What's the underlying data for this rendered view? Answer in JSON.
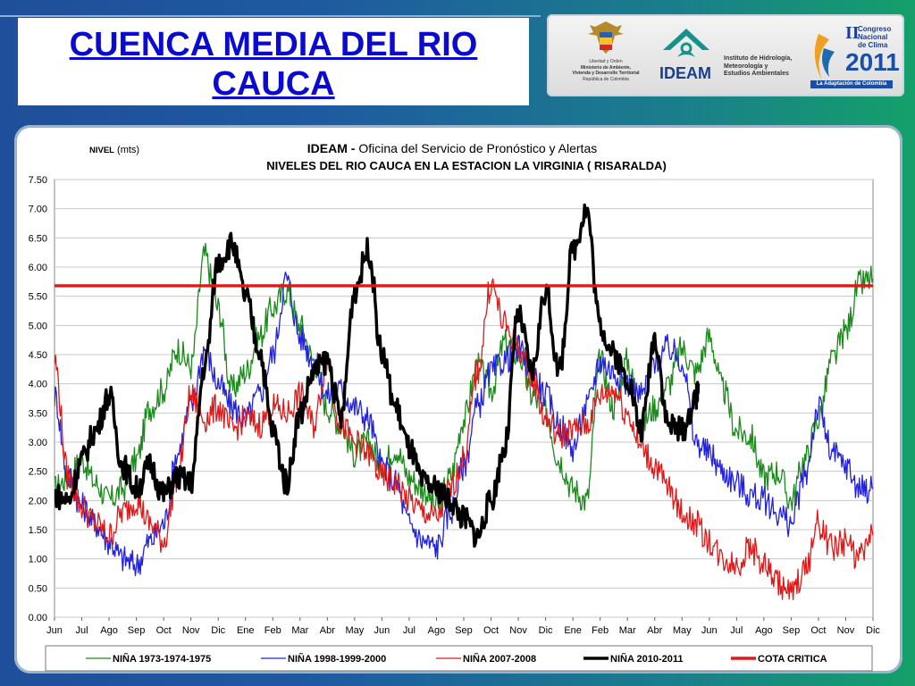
{
  "slide": {
    "title_line1": "CUENCA  MEDIA DEL RIO",
    "title_line2": "CAUCA"
  },
  "logos": {
    "ministerio": {
      "icon": "colombia-coat-of-arms",
      "lines": [
        "Libertad y Orden",
        "Ministerio de Ambiente,",
        "Vivienda y Desarrollo Territorial",
        "República de Colombia"
      ]
    },
    "ideam": {
      "icon": "ideam-logo",
      "name": "IDEAM",
      "lines": [
        "Instituto de Hidrología,",
        "Meteorología y",
        "Estudios Ambientales"
      ]
    },
    "congreso": {
      "icon": "congreso-clima-logo",
      "roman": "II",
      "word1": "Congreso",
      "word2": "Nacional",
      "word3": "de Clima",
      "year": "2011",
      "tagline": "La Adaptación de Colombia"
    }
  },
  "chart_data": {
    "type": "line",
    "title_bold": "IDEAM -",
    "title_rest": " Oficina del Servicio de Pronóstico y Alertas",
    "subtitle": "NIVELES DEL RIO CAUCA EN LA ESTACION LA VIRGINIA ( RISARALDA)",
    "ylabel_bold": "NIVEL",
    "ylabel_rest": " (mts)",
    "ylim": [
      0,
      7.5
    ],
    "yticks": [
      "0.00",
      "0.50",
      "1.00",
      "1.50",
      "2.00",
      "2.50",
      "3.00",
      "3.50",
      "4.00",
      "4.50",
      "5.00",
      "5.50",
      "6.00",
      "6.50",
      "7.00",
      "7.50"
    ],
    "x_months": [
      "Jun",
      "Jul",
      "Ago",
      "Sep",
      "Oct",
      "Nov",
      "Dic",
      "Ene",
      "Feb",
      "Mar",
      "Abr",
      "May",
      "Jun",
      "Jul",
      "Ago",
      "Sep",
      "Oct",
      "Nov",
      "Dic",
      "Ene",
      "Feb",
      "Mar",
      "Abr",
      "May",
      "Jun",
      "Jul",
      "Ago",
      "Sep",
      "Oct",
      "Nov",
      "Dic"
    ],
    "x_note": "x value = months since first Jun tick (0..30)",
    "cota_critica": 5.68,
    "series": [
      {
        "name": "NIÑA 1973-1974-1975",
        "color": "#1a8a1a",
        "width": 1.3,
        "x": [
          0,
          0.5,
          1,
          1.5,
          2,
          2.5,
          3,
          3.5,
          4,
          4.5,
          5,
          5.5,
          6,
          6.5,
          7,
          7.5,
          8,
          8.5,
          9,
          9.5,
          10,
          10.5,
          11,
          11.5,
          12,
          12.5,
          13,
          13.5,
          14,
          14.5,
          15,
          15.5,
          16,
          16.5,
          17,
          17.5,
          18,
          18.5,
          19,
          19.5,
          20,
          20.5,
          21,
          21.5,
          22,
          22.5,
          23,
          23.5,
          24,
          24.5,
          25,
          25.5,
          26,
          26.5,
          27,
          27.5,
          28,
          28.5,
          29,
          29.5,
          30
        ],
        "y": [
          2.2,
          2.4,
          2.7,
          2.3,
          2.0,
          2.2,
          2.7,
          3.6,
          3.9,
          4.6,
          4.3,
          6.2,
          5.3,
          3.9,
          4.2,
          4.8,
          5.3,
          5.6,
          5.0,
          4.4,
          3.6,
          3.3,
          2.8,
          3.0,
          2.6,
          2.9,
          2.4,
          2.2,
          1.9,
          2.4,
          3.4,
          4.3,
          3.9,
          4.7,
          4.5,
          3.8,
          3.5,
          2.7,
          2.2,
          2.0,
          4.4,
          3.6,
          4.4,
          3.3,
          3.6,
          4.0,
          4.6,
          4.2,
          4.8,
          3.9,
          3.2,
          3.1,
          2.4,
          2.5,
          2.0,
          2.7,
          3.4,
          4.4,
          4.9,
          5.7,
          5.8
        ]
      },
      {
        "name": "NIÑA 1998-1999-2000",
        "color": "#2222dd",
        "width": 1.3,
        "x": [
          0,
          0.5,
          1,
          1.5,
          2,
          2.5,
          3,
          3.5,
          4,
          4.5,
          5,
          5.5,
          6,
          6.5,
          7,
          7.5,
          8,
          8.5,
          9,
          9.5,
          10,
          10.5,
          11,
          11.5,
          12,
          12.5,
          13,
          13.5,
          14,
          14.5,
          15,
          15.5,
          16,
          16.5,
          17,
          17.5,
          18,
          18.5,
          19,
          19.5,
          20,
          20.5,
          21,
          21.5,
          22,
          22.5,
          23,
          23.5,
          24,
          24.5,
          25,
          25.5,
          26,
          26.5,
          27,
          27.5,
          28,
          28.5,
          29,
          29.5,
          30
        ],
        "y": [
          3.8,
          2.4,
          1.9,
          1.6,
          1.3,
          1.0,
          0.9,
          1.3,
          1.6,
          2.8,
          3.6,
          4.6,
          4.0,
          3.6,
          3.4,
          3.8,
          4.5,
          5.8,
          4.8,
          4.4,
          3.8,
          3.9,
          3.6,
          3.4,
          2.6,
          2.3,
          1.6,
          1.3,
          1.2,
          1.8,
          2.6,
          3.6,
          4.2,
          4.4,
          4.6,
          4.2,
          3.8,
          3.3,
          2.9,
          3.6,
          4.4,
          4.2,
          4.0,
          3.8,
          4.4,
          4.6,
          4.4,
          3.0,
          2.8,
          2.5,
          2.3,
          2.1,
          2.0,
          1.8,
          1.6,
          2.4,
          3.6,
          2.8,
          2.6,
          2.2,
          2.2
        ]
      },
      {
        "name": "NIÑA 2007-2008",
        "color": "#e01818",
        "width": 1.3,
        "x": [
          0,
          0.5,
          1,
          1.5,
          2,
          2.5,
          3,
          3.5,
          4,
          4.5,
          5,
          5.5,
          6,
          6.5,
          7,
          7.5,
          8,
          8.5,
          9,
          9.5,
          10,
          10.5,
          11,
          11.5,
          12,
          12.5,
          13,
          13.5,
          14,
          14.5,
          15,
          15.5,
          16,
          16.5,
          17,
          17.5,
          18,
          18.5,
          19,
          19.5,
          20,
          20.5,
          21,
          21.5,
          22,
          22.5,
          23,
          23.5,
          24,
          24.5,
          25,
          25.5,
          26,
          26.5,
          27,
          27.5,
          28,
          28.5,
          29,
          29.5,
          30
        ],
        "y": [
          4.4,
          2.4,
          1.9,
          1.6,
          1.4,
          1.8,
          2.0,
          1.6,
          1.3,
          2.4,
          3.8,
          3.4,
          3.6,
          3.2,
          3.4,
          3.3,
          3.6,
          3.5,
          3.8,
          3.3,
          4.4,
          3.3,
          3.0,
          2.8,
          2.4,
          2.3,
          2.0,
          1.8,
          1.7,
          2.2,
          2.7,
          4.2,
          5.7,
          5.0,
          4.6,
          4.1,
          3.4,
          3.1,
          3.2,
          3.3,
          3.8,
          3.9,
          3.5,
          2.9,
          2.6,
          2.2,
          1.8,
          1.6,
          1.3,
          1.0,
          0.9,
          1.2,
          0.9,
          0.6,
          0.4,
          0.8,
          1.6,
          1.2,
          1.3,
          1.0,
          1.4
        ]
      },
      {
        "name": "NIÑA 2010-2011",
        "color": "#000000",
        "width": 3.4,
        "x": [
          0,
          0.5,
          1,
          1.5,
          2,
          2.5,
          3,
          3.5,
          4,
          4.5,
          5,
          5.5,
          6,
          6.5,
          7,
          7.5,
          8,
          8.5,
          9,
          9.5,
          10,
          10.5,
          11,
          11.5,
          12,
          12.5,
          13,
          13.5,
          14,
          14.5,
          15,
          15.5,
          16,
          16.5,
          17,
          17.5,
          18,
          18.5,
          19,
          19.5,
          20,
          20.5,
          21,
          21.5,
          22,
          22.5,
          23,
          23.5,
          23.6
        ],
        "y": [
          2.1,
          2.0,
          2.7,
          3.2,
          3.8,
          2.6,
          2.2,
          2.6,
          2.1,
          2.4,
          2.3,
          4.3,
          6.1,
          6.4,
          5.5,
          4.6,
          3.2,
          2.3,
          3.5,
          4.2,
          4.4,
          3.4,
          5.6,
          6.3,
          4.5,
          3.6,
          2.9,
          2.3,
          2.2,
          2.0,
          1.7,
          1.4,
          2.0,
          2.9,
          5.2,
          4.2,
          5.6,
          4.2,
          6.3,
          7.0,
          5.0,
          4.5,
          4.1,
          3.2,
          4.8,
          3.3,
          3.2,
          3.7,
          4.0
        ]
      }
    ],
    "legend": [
      {
        "label": "NIÑA 1973-1974-1975",
        "color": "#1a8a1a",
        "width": 1.3
      },
      {
        "label": "NIÑA 1998-1999-2000",
        "color": "#2222dd",
        "width": 1.3
      },
      {
        "label": "NIÑA 2007-2008",
        "color": "#e01818",
        "width": 1.3
      },
      {
        "label": "NIÑA 2010-2011",
        "color": "#000000",
        "width": 3.4
      },
      {
        "label": "COTA CRITICA",
        "color": "#e01818",
        "width": 3.4
      }
    ],
    "grid": true,
    "legend_position": "bottom"
  }
}
